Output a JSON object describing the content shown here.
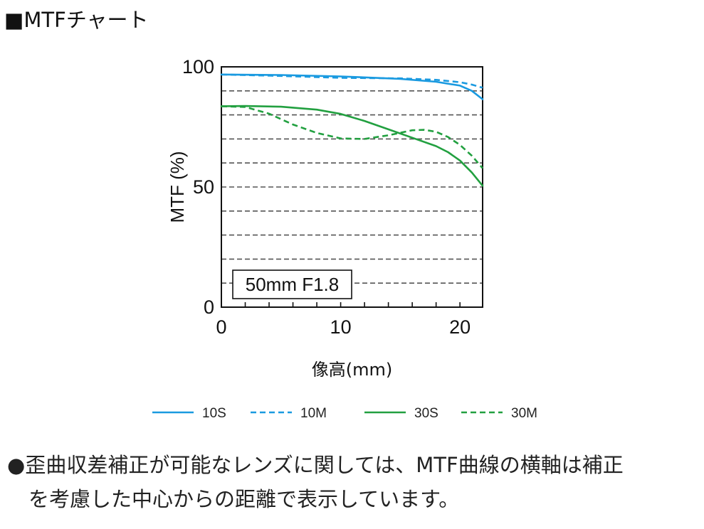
{
  "heading": "■MTFチャート",
  "chart_data": {
    "type": "line",
    "lens_label": "50mm F1.8",
    "xlabel": "像高(mm)",
    "ylabel": "MTF (%)",
    "xlim": [
      0,
      21.9
    ],
    "ylim": [
      0,
      100
    ],
    "x_ticks": [
      0,
      10,
      20
    ],
    "y_ticks": [
      0,
      50,
      100
    ],
    "grid": "horizontal dashed every 10",
    "legend_position": "bottom",
    "series": [
      {
        "name": "10S",
        "color": "#1a9ae0",
        "dashed": false,
        "x": [
          0,
          5,
          10,
          15,
          18,
          20,
          21,
          21.9
        ],
        "y": [
          96.8,
          96.6,
          96.0,
          95.0,
          93.8,
          92.2,
          90.0,
          86.5
        ]
      },
      {
        "name": "10M",
        "color": "#1a9ae0",
        "dashed": true,
        "x": [
          0,
          5,
          10,
          15,
          18,
          20,
          21,
          21.9
        ],
        "y": [
          96.8,
          96.2,
          95.4,
          95.2,
          94.6,
          93.6,
          92.6,
          91.3
        ]
      },
      {
        "name": "30S",
        "color": "#22a040",
        "dashed": false,
        "x": [
          0,
          2,
          5,
          8,
          10,
          12,
          14,
          16,
          18,
          19,
          20,
          21,
          21.9
        ],
        "y": [
          83.6,
          83.7,
          83.4,
          82.2,
          80.4,
          77.5,
          74.0,
          70.5,
          67.0,
          64.5,
          61.0,
          56.0,
          50.5
        ]
      },
      {
        "name": "30M",
        "color": "#22a040",
        "dashed": true,
        "x": [
          0,
          2,
          4,
          6,
          8,
          10,
          12,
          14,
          16,
          17,
          18,
          19,
          20,
          21,
          21.9
        ],
        "y": [
          83.6,
          83.3,
          80.5,
          76.0,
          72.5,
          70.2,
          70.0,
          71.5,
          73.6,
          73.8,
          73.0,
          70.8,
          67.5,
          63.0,
          57.8
        ]
      }
    ]
  },
  "note_bullet": "●",
  "note_line1": "歪曲収差補正が可能なレンズに関しては、MTF曲線の横軸は補正",
  "note_line2": "を考慮した中心からの距離で表示しています。"
}
